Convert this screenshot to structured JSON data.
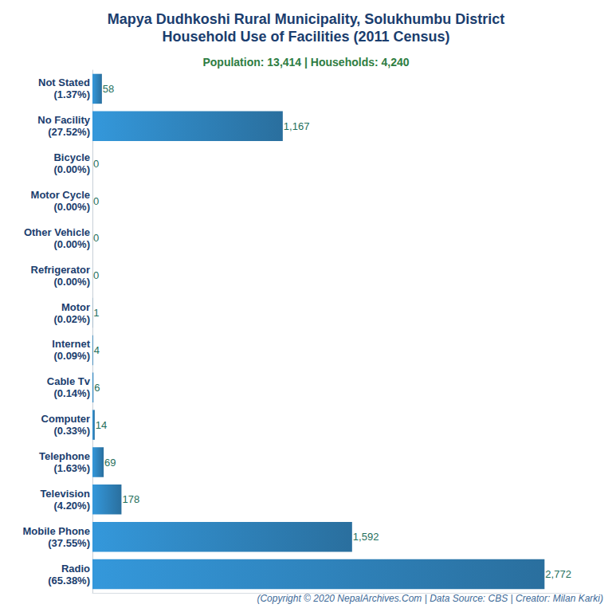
{
  "chart_data": {
    "type": "bar",
    "orientation": "horizontal",
    "title": "Mapya Dudhkoshi Rural Municipality, Solukhumbu District\nHousehold Use of Facilities (2011 Census)",
    "subtitle": "Population: 13,414 | Households: 4,240",
    "source": "(Copyright © 2020 NepalArchives.Com | Data Source: CBS | Creator: Milan Karki)",
    "categories": [
      "Not Stated\n(1.37%)",
      "No Facility\n(27.52%)",
      "Bicycle\n(0.00%)",
      "Motor Cycle\n(0.00%)",
      "Other Vehicle\n(0.00%)",
      "Refrigerator\n(0.00%)",
      "Motor\n(0.02%)",
      "Internet\n(0.09%)",
      "Cable Tv\n(0.14%)",
      "Computer\n(0.33%)",
      "Telephone\n(1.63%)",
      "Television\n(4.20%)",
      "Mobile Phone\n(37.55%)",
      "Radio\n(65.38%)"
    ],
    "values": [
      58,
      1167,
      0,
      0,
      0,
      0,
      1,
      4,
      6,
      14,
      69,
      178,
      1592,
      2772
    ],
    "value_labels": [
      "58",
      "1,167",
      "0",
      "0",
      "0",
      "0",
      "1",
      "4",
      "6",
      "14",
      "69",
      "178",
      "1,592",
      "2,772"
    ],
    "color": "#3498db",
    "xlim": [
      0,
      3000
    ],
    "grid": false,
    "data_labels": true,
    "tick_labels": "y"
  }
}
